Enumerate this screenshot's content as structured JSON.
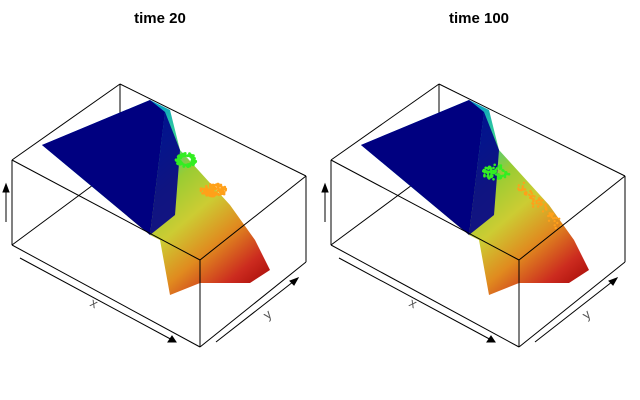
{
  "chart_data": [
    {
      "type": "surface3d",
      "title": "time  20",
      "xlabel": "x",
      "ylabel": "y",
      "zlabel": "",
      "colormap": [
        "#00007f",
        "#0033cc",
        "#0099cc",
        "#33cc99",
        "#99cc33",
        "#cccc33",
        "#e08a1f",
        "#cc2b1f",
        "#990000"
      ],
      "particle_groups": [
        {
          "color": "#33ee22",
          "shape": "ring"
        },
        {
          "color": "#ffa01a",
          "shape": "cluster"
        }
      ]
    },
    {
      "type": "surface3d",
      "title": "time  100",
      "xlabel": "x",
      "ylabel": "y",
      "zlabel": "",
      "colormap": [
        "#00007f",
        "#0033cc",
        "#0099cc",
        "#33cc99",
        "#99cc33",
        "#cccc33",
        "#e08a1f",
        "#cc2b1f",
        "#990000"
      ],
      "particle_groups": [
        {
          "color": "#33ee22",
          "shape": "scatter"
        },
        {
          "color": "#ffa01a",
          "shape": "streak"
        }
      ]
    }
  ]
}
